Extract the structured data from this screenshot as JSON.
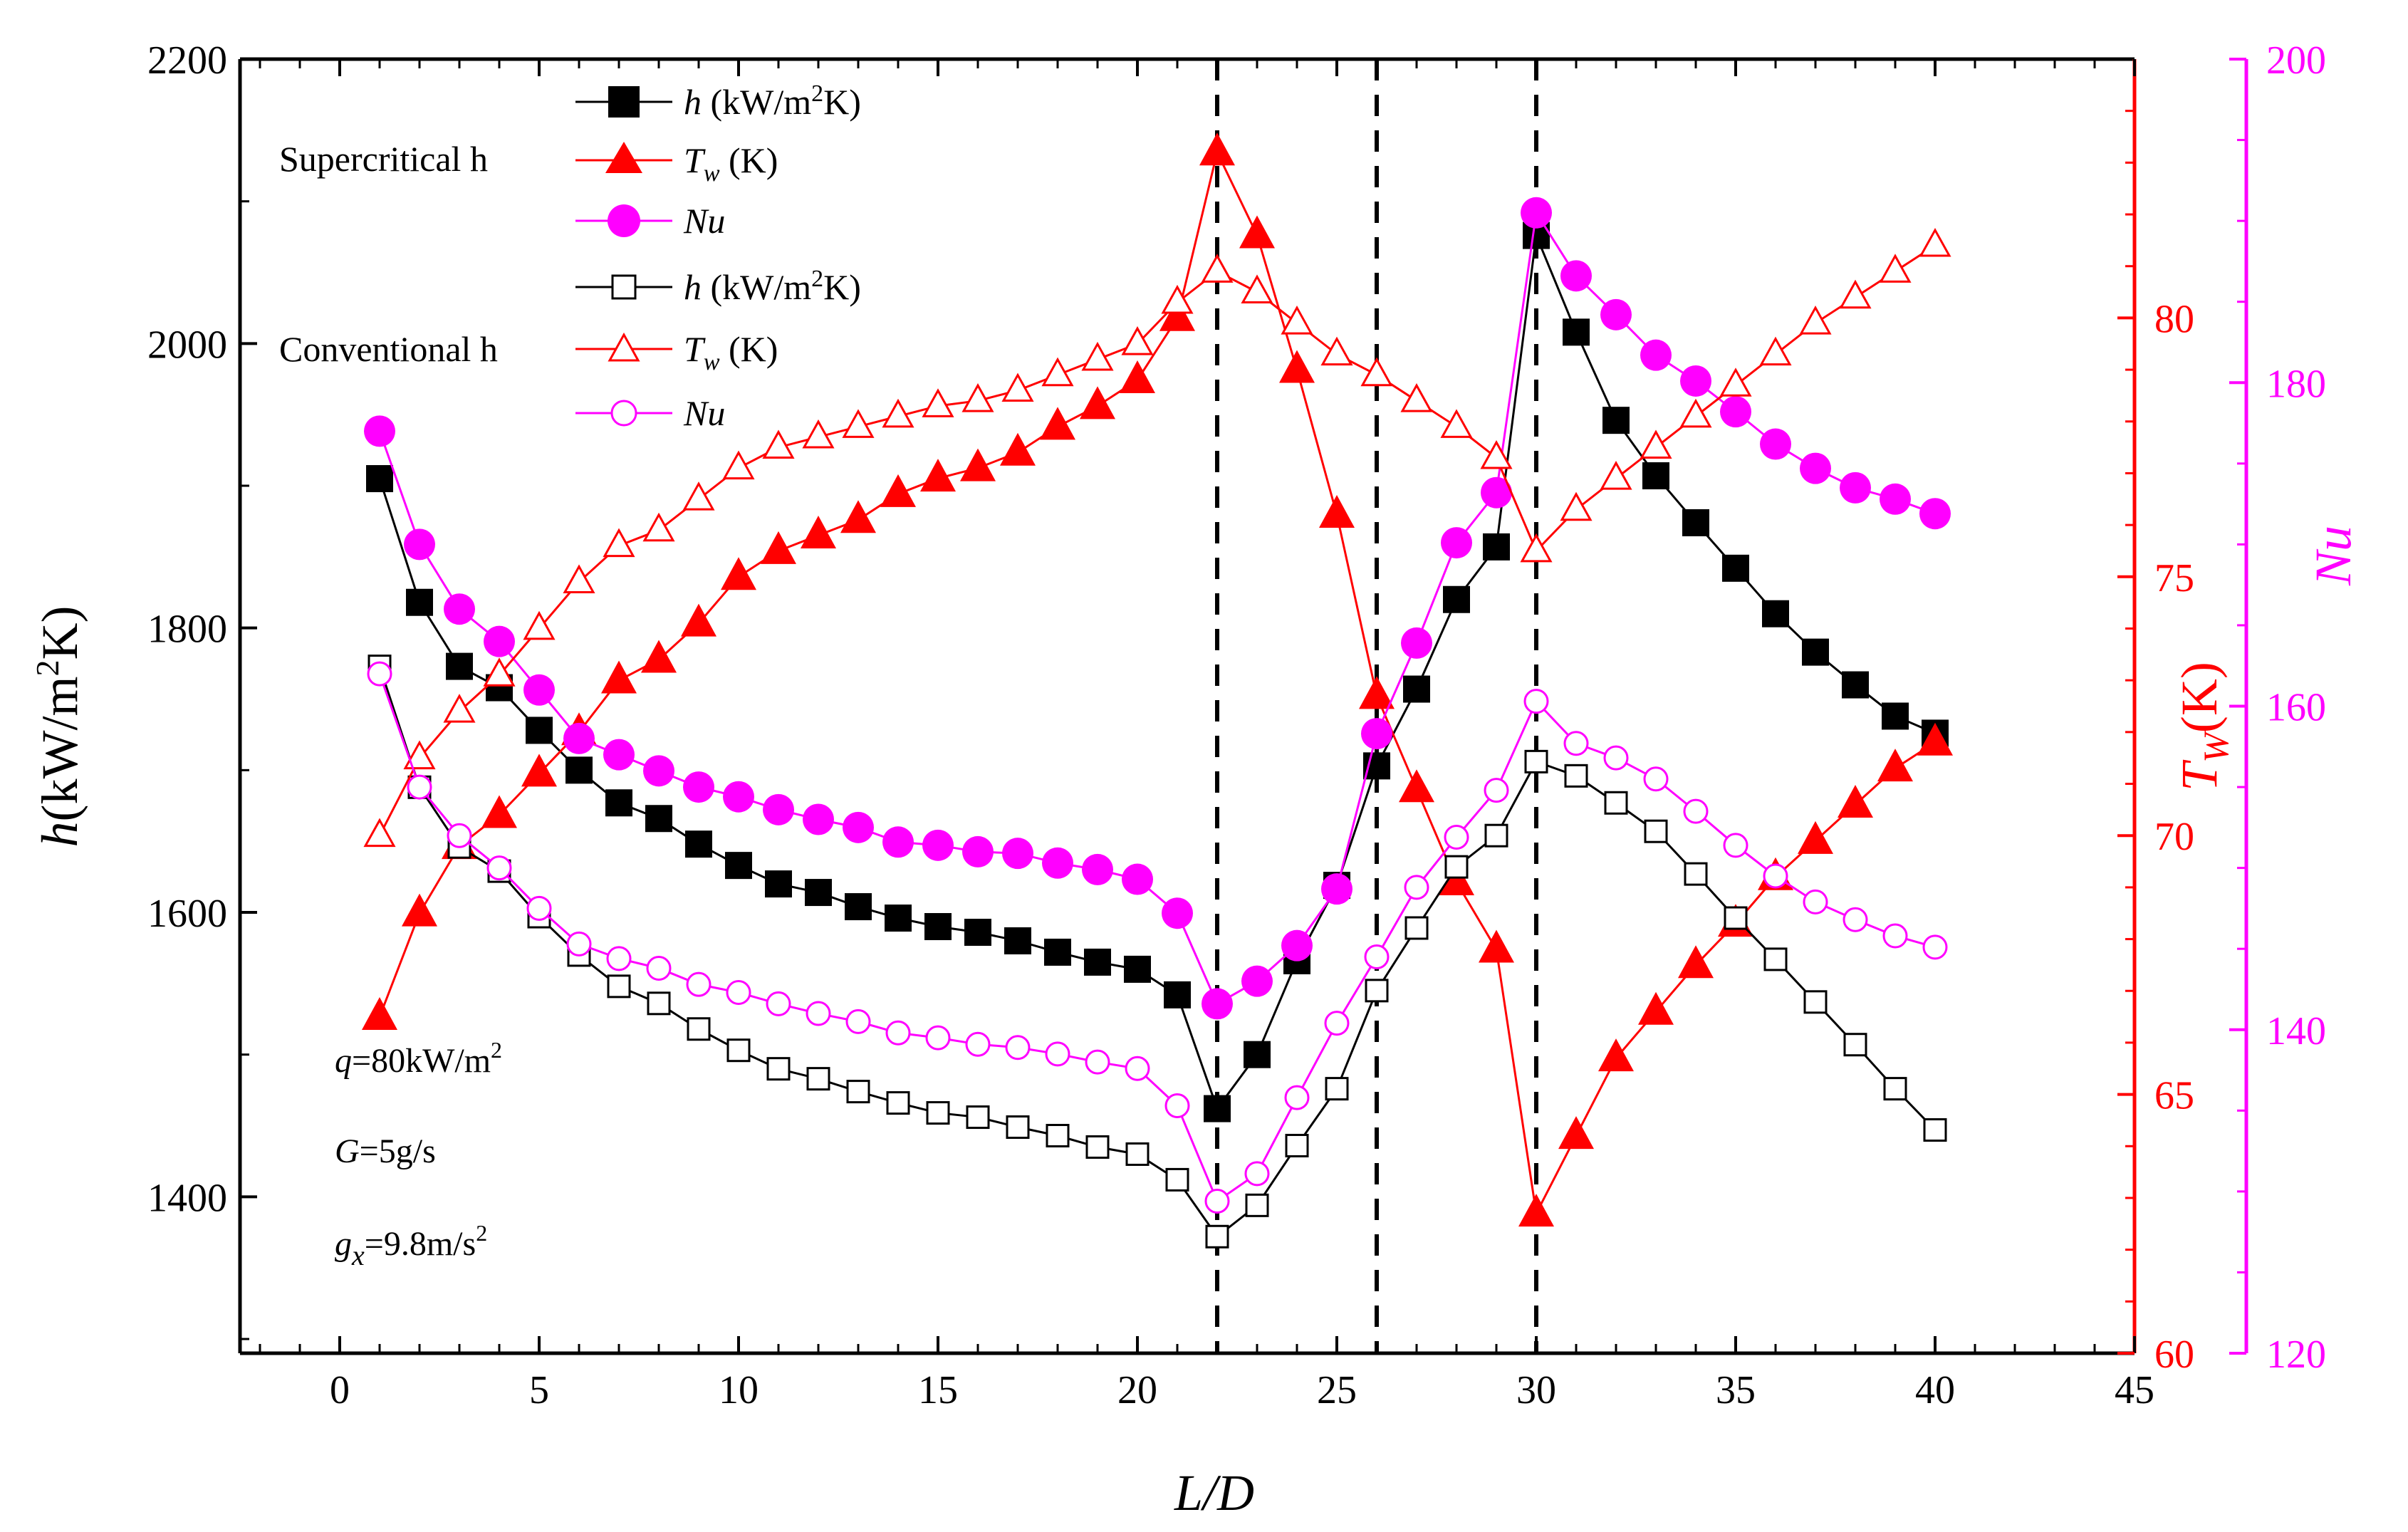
{
  "chart_data": {
    "type": "line",
    "x": [
      1,
      2,
      3,
      4,
      5,
      6,
      7,
      8,
      9,
      10,
      11,
      12,
      13,
      14,
      15,
      16,
      17,
      18,
      19,
      20,
      21,
      22,
      23,
      24,
      25,
      26,
      27,
      28,
      29,
      30,
      31,
      32,
      33,
      34,
      35,
      36,
      37,
      38,
      39,
      40
    ],
    "x_axis": {
      "label": "L/D",
      "range": [
        -2.5,
        45
      ],
      "ticks": [
        0,
        5,
        10,
        15,
        20,
        25,
        30,
        35,
        40,
        45
      ],
      "ticklabels": [
        "0",
        "5",
        "10",
        "15",
        "20",
        "25",
        "30",
        "35",
        "40",
        "45"
      ]
    },
    "y_axes": {
      "left": {
        "label": "h(kW/m²K)",
        "range": [
          1290,
          2200
        ],
        "ticks": [
          1400,
          1600,
          1800,
          2000,
          2200
        ],
        "ticklabels": [
          "1400",
          "1600",
          "1800",
          "2000",
          "2200"
        ],
        "color": "#000000"
      },
      "right1": {
        "label": "T_W(K)",
        "range": [
          60,
          85
        ],
        "ticks": [
          60,
          65,
          70,
          75,
          80
        ],
        "ticklabels": [
          "60",
          "65",
          "70",
          "75",
          "80"
        ],
        "color": "#ff0000"
      },
      "right2": {
        "label": "Nu",
        "range": [
          120,
          200
        ],
        "ticks": [
          120,
          140,
          160,
          180,
          200
        ],
        "ticklabels": [
          "120",
          "140",
          "160",
          "180",
          "200"
        ],
        "color": "#ff00ff"
      }
    },
    "vlines": [
      22,
      26,
      30
    ],
    "series": [
      {
        "name": "h (kW/m²K)",
        "group": "Supercritical h",
        "axis": "left",
        "marker": "square",
        "filled": true,
        "color": "#000000",
        "values": [
          1905,
          1818,
          1773,
          1758,
          1728,
          1700,
          1677,
          1666,
          1648,
          1633,
          1620,
          1614,
          1604,
          1596,
          1590,
          1586,
          1580,
          1572,
          1565,
          1560,
          1542,
          1462,
          1500,
          1566,
          1619,
          1703,
          1757,
          1820,
          1857,
          2076,
          2008,
          1946,
          1907,
          1874,
          1842,
          1810,
          1783,
          1760,
          1738,
          1726
        ]
      },
      {
        "name": "Tw (K)",
        "group": "Supercritical h",
        "axis": "right1",
        "marker": "triangle",
        "filled": true,
        "color": "#ff0000",
        "values": [
          66.5,
          68.5,
          69.8,
          70.4,
          71.2,
          72.0,
          73.0,
          73.4,
          74.1,
          75.0,
          75.5,
          75.8,
          76.1,
          76.6,
          76.9,
          77.1,
          77.4,
          77.9,
          78.3,
          78.8,
          80.0,
          83.2,
          81.6,
          79.0,
          76.2,
          72.7,
          70.9,
          69.1,
          67.8,
          62.7,
          64.2,
          65.7,
          66.6,
          67.5,
          68.3,
          69.2,
          69.9,
          70.6,
          71.3,
          71.8
        ]
      },
      {
        "name": "Nu",
        "group": "Supercritical h",
        "axis": "right2",
        "marker": "circle",
        "filled": true,
        "color": "#ff00ff",
        "values": [
          177,
          170,
          166,
          164,
          161,
          158,
          157,
          156,
          155,
          154.4,
          153.6,
          153.0,
          152.5,
          151.6,
          151.4,
          151.0,
          150.9,
          150.3,
          149.9,
          149.3,
          147.2,
          141.6,
          143.0,
          145.2,
          148.7,
          158.3,
          163.9,
          170.1,
          173.2,
          190.5,
          186.6,
          184.2,
          181.7,
          180.1,
          178.2,
          176.2,
          174.7,
          173.5,
          172.8,
          171.9
        ]
      },
      {
        "name": "h (kW/m²K)",
        "group": "Conventional h",
        "axis": "left",
        "marker": "square",
        "filled": false,
        "color": "#000000",
        "values": [
          1773,
          1688,
          1646,
          1629,
          1597,
          1570,
          1548,
          1536,
          1518,
          1503,
          1490,
          1483,
          1474,
          1466,
          1459,
          1456,
          1449,
          1443,
          1435,
          1430,
          1412,
          1372,
          1394,
          1436,
          1476,
          1545,
          1589,
          1632,
          1654,
          1706,
          1696,
          1677,
          1657,
          1627,
          1596,
          1567,
          1537,
          1507,
          1476,
          1447
        ]
      },
      {
        "name": "Tw (K)",
        "group": "Conventional h",
        "axis": "right1",
        "marker": "triangle",
        "filled": false,
        "color": "#ff0000",
        "values": [
          70.0,
          71.5,
          72.4,
          73.1,
          74.0,
          74.9,
          75.6,
          75.9,
          76.5,
          77.1,
          77.5,
          77.7,
          77.9,
          78.1,
          78.3,
          78.4,
          78.6,
          78.9,
          79.2,
          79.5,
          80.3,
          80.9,
          80.5,
          79.9,
          79.3,
          78.9,
          78.4,
          77.9,
          77.3,
          75.5,
          76.3,
          76.9,
          77.5,
          78.1,
          78.7,
          79.3,
          79.9,
          80.4,
          80.9,
          81.4
        ]
      },
      {
        "name": "Nu",
        "group": "Conventional h",
        "axis": "right2",
        "marker": "circle",
        "filled": false,
        "color": "#ff00ff",
        "values": [
          162,
          155,
          152,
          150,
          147.5,
          145.3,
          144.4,
          143.8,
          142.8,
          142.3,
          141.6,
          141.0,
          140.5,
          139.8,
          139.5,
          139.1,
          138.9,
          138.5,
          138.0,
          137.6,
          135.3,
          129.4,
          131.1,
          135.8,
          140.4,
          144.5,
          148.8,
          151.9,
          154.8,
          160.3,
          157.7,
          156.8,
          155.5,
          153.5,
          151.4,
          149.5,
          147.9,
          146.8,
          145.8,
          145.1
        ]
      }
    ],
    "legend": {
      "placement": "top-left",
      "groups": [
        "Supercritical h",
        "Conventional h"
      ]
    },
    "annotations": [
      "q=80kW/m²",
      "G=5g/s",
      "gx=9.8m/s²"
    ],
    "grid": false
  }
}
